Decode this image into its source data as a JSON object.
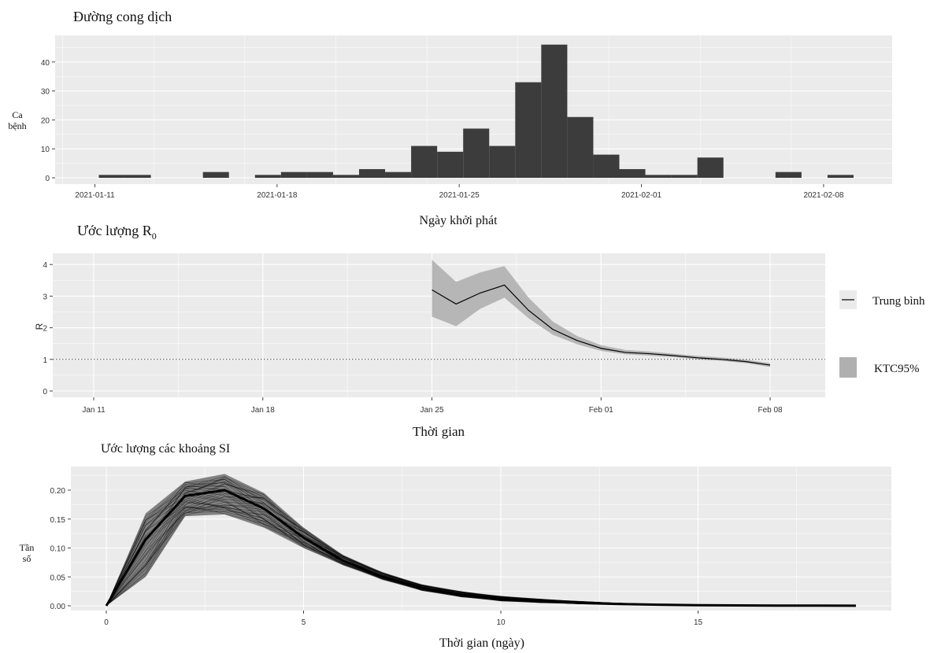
{
  "chart_data": [
    {
      "type": "bar",
      "title": "Đường cong dịch",
      "xlabel": "Ngày khởi phát",
      "ylabel": [
        "Ca",
        "bệnh"
      ],
      "x_ticks": [
        "2021-01-11",
        "2021-01-18",
        "2021-01-25",
        "2021-02-01",
        "2021-02-08"
      ],
      "y_ticks": [
        0,
        10,
        20,
        30,
        40
      ],
      "ylim": [
        0,
        46
      ],
      "categories": [
        "2021-01-11",
        "2021-01-12",
        "2021-01-13",
        "2021-01-14",
        "2021-01-15",
        "2021-01-16",
        "2021-01-17",
        "2021-01-18",
        "2021-01-19",
        "2021-01-20",
        "2021-01-21",
        "2021-01-22",
        "2021-01-23",
        "2021-01-24",
        "2021-01-25",
        "2021-01-26",
        "2021-01-27",
        "2021-01-28",
        "2021-01-29",
        "2021-01-30",
        "2021-01-31",
        "2021-02-01",
        "2021-02-02",
        "2021-02-03",
        "2021-02-04",
        "2021-02-05",
        "2021-02-06",
        "2021-02-07",
        "2021-02-08"
      ],
      "values": [
        1,
        1,
        0,
        0,
        2,
        0,
        1,
        2,
        2,
        1,
        3,
        2,
        11,
        9,
        17,
        11,
        33,
        46,
        21,
        8,
        3,
        1,
        1,
        7,
        0,
        0,
        2,
        0,
        1
      ],
      "bar_color": "#3c3c3c",
      "grid": true
    },
    {
      "type": "line",
      "title_text": "Ước lượng R",
      "title_sub": "0",
      "xlabel": "Thời gian",
      "ylabel": "R",
      "x_ticks": [
        "Jan 11",
        "Jan 18",
        "Jan 25",
        "Feb 01",
        "Feb 08"
      ],
      "y_ticks": [
        0,
        1,
        2,
        3,
        4
      ],
      "ylim": [
        0,
        4.2
      ],
      "x_days": [
        25,
        26,
        27,
        28,
        29,
        30,
        31,
        32,
        33,
        34,
        35,
        36,
        37,
        38,
        39
      ],
      "series": [
        {
          "name": "Trung bình",
          "values": [
            3.2,
            2.75,
            3.1,
            3.35,
            2.55,
            1.95,
            1.6,
            1.35,
            1.22,
            1.18,
            1.12,
            1.05,
            1.0,
            0.93,
            0.82
          ]
        }
      ],
      "ci_lower": [
        2.35,
        2.05,
        2.6,
        2.95,
        2.3,
        1.78,
        1.48,
        1.27,
        1.16,
        1.12,
        1.07,
        1.0,
        0.95,
        0.88,
        0.76
      ],
      "ci_upper": [
        4.15,
        3.45,
        3.75,
        3.95,
        2.95,
        2.2,
        1.74,
        1.45,
        1.3,
        1.25,
        1.18,
        1.11,
        1.06,
        0.99,
        0.88
      ],
      "hline": 1,
      "legend": [
        "Trung bình",
        "KTC95%"
      ],
      "legend_placement": "right",
      "ci_color": "#b0b0b0",
      "grid": true
    },
    {
      "type": "line",
      "title": "Ước lượng các khoảng SI",
      "xlabel": "Thời gian (ngày)",
      "ylabel": [
        "Tần",
        "số"
      ],
      "x_ticks": [
        0,
        5,
        10,
        15
      ],
      "y_ticks": [
        "0.00",
        "0.05",
        "0.10",
        "0.15",
        "0.20"
      ],
      "xlim": [
        0,
        19
      ],
      "ylim": [
        0,
        0.23
      ],
      "x": [
        0,
        1,
        2,
        3,
        4,
        5,
        6,
        7,
        8,
        9,
        10,
        11,
        12,
        13,
        14,
        15,
        16,
        17,
        18,
        19
      ],
      "band_lower": [
        0,
        0.05,
        0.155,
        0.158,
        0.135,
        0.1,
        0.07,
        0.045,
        0.026,
        0.015,
        0.008,
        0.005,
        0.003,
        0.0018,
        0.001,
        0.0006,
        0.0003,
        0.0002,
        0.0001,
        5e-05
      ],
      "band_upper": [
        0,
        0.16,
        0.215,
        0.228,
        0.195,
        0.135,
        0.088,
        0.058,
        0.037,
        0.025,
        0.017,
        0.012,
        0.008,
        0.005,
        0.003,
        0.002,
        0.0012,
        0.0008,
        0.0005,
        0.0003
      ],
      "band_center": [
        0,
        0.115,
        0.19,
        0.2,
        0.168,
        0.118,
        0.078,
        0.05,
        0.031,
        0.019,
        0.012,
        0.008,
        0.005,
        0.003,
        0.0018,
        0.0011,
        0.0007,
        0.0004,
        0.0003,
        0.0002
      ],
      "line_color": "#000000",
      "grid": true
    }
  ]
}
